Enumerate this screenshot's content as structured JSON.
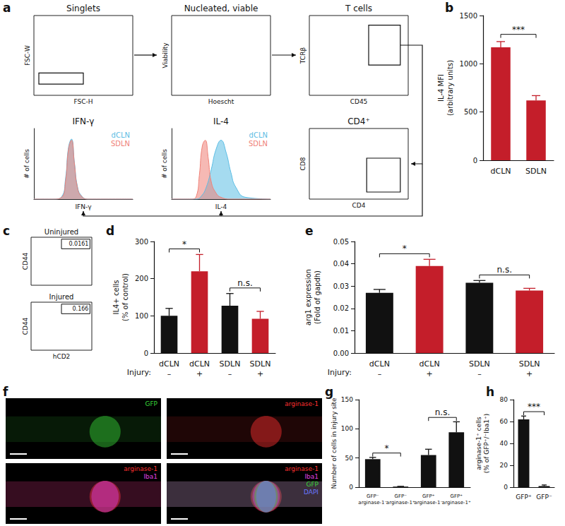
{
  "chart_data": [
    {
      "panel": "a",
      "type": "flow",
      "title": "Singlets",
      "xlabel": "FSC-H",
      "ylabel": "FSC-W"
    },
    {
      "type": "flow",
      "title": "Nucleated, viable",
      "xlabel": "Hoescht",
      "ylabel": "Viability"
    },
    {
      "type": "flow",
      "title": "T cells",
      "xlabel": "CD45",
      "ylabel": "TCRβ"
    },
    {
      "type": "flow",
      "title": "CD4⁺",
      "xlabel": "CD4",
      "ylabel": "CD8"
    },
    {
      "type": "histogram",
      "title": "IFN-γ",
      "xlabel": "IFN-γ",
      "ylabel": "# of cells",
      "xlim": [
        0,
        100
      ],
      "ylim": [
        0,
        120
      ],
      "tick_labels": false,
      "legend": "upper right",
      "series": [
        {
          "name": "dCLN",
          "color": "#5bbde4",
          "x": [
            0,
            20,
            28,
            32,
            35,
            38,
            41,
            44,
            48,
            55,
            100
          ],
          "values": [
            0,
            0,
            4,
            35,
            88,
            102,
            62,
            22,
            6,
            0,
            0
          ]
        },
        {
          "name": "SDLN",
          "color": "#ef8077",
          "x": [
            0,
            20,
            28,
            32,
            35,
            38,
            41,
            44,
            48,
            55,
            100
          ],
          "values": [
            0,
            0,
            3,
            30,
            85,
            100,
            60,
            20,
            5,
            0,
            0
          ]
        }
      ]
    },
    {
      "type": "histogram",
      "title": "IL-4",
      "xlabel": "IL-4",
      "ylabel": "# of cells",
      "xlim": [
        0,
        100
      ],
      "ylim": [
        0,
        120
      ],
      "tick_labels": false,
      "legend": "upper right",
      "series": [
        {
          "name": "dCLN",
          "color": "#5bbde4",
          "x": [
            0,
            25,
            30,
            35,
            40,
            45,
            50,
            55,
            60,
            65,
            75,
            100
          ],
          "values": [
            0,
            0,
            5,
            20,
            50,
            85,
            100,
            80,
            45,
            20,
            3,
            0
          ]
        },
        {
          "name": "SDLN",
          "color": "#ef8077",
          "x": [
            0,
            20,
            25,
            28,
            31,
            34,
            37,
            40,
            45,
            50,
            60,
            100
          ],
          "values": [
            0,
            0,
            5,
            40,
            90,
            100,
            70,
            30,
            10,
            3,
            0,
            0
          ]
        }
      ]
    },
    {
      "panel": "b",
      "type": "bar",
      "categories": [
        "dCLN",
        "SDLN"
      ],
      "values": [
        1170,
        620
      ],
      "errors": [
        60,
        50
      ],
      "color": "#c41e2a",
      "ylim": [
        0,
        1500
      ],
      "yticks": [
        0,
        500,
        1000,
        1500
      ],
      "ylabel": "IL-4 MFI\n(arbitrary units)",
      "grid": false,
      "comparisons": [
        {
          "from": 0,
          "to": 1,
          "label": "***"
        }
      ]
    },
    {
      "panel": "c",
      "type": "flow_gate",
      "xlabel": "hCD2",
      "ylabel": "CD44",
      "plots": [
        {
          "title": "Uninjured",
          "gate_percent": 0.0161
        },
        {
          "title": "Injured",
          "gate_percent": 0.166
        }
      ]
    },
    {
      "panel": "d",
      "type": "bar",
      "categories": [
        "dCLN",
        "dCLN",
        "SDLN",
        "SDLN"
      ],
      "injury_label": "Injury:",
      "injury": [
        "–",
        "+",
        "–",
        "+"
      ],
      "values": [
        100,
        220,
        127,
        92
      ],
      "errors": [
        20,
        45,
        33,
        20
      ],
      "colors": [
        "#111111",
        "#c41e2a",
        "#111111",
        "#c41e2a"
      ],
      "ylim": [
        0,
        300
      ],
      "yticks": [
        0,
        100,
        200,
        300
      ],
      "ylabel": "IL4+ cells\n(% of control)",
      "grid": false,
      "comparisons": [
        {
          "from": 0,
          "to": 1,
          "label": "*"
        },
        {
          "from": 2,
          "to": 3,
          "label": "n.s."
        }
      ]
    },
    {
      "panel": "e",
      "type": "bar",
      "categories": [
        "dCLN",
        "dCLN",
        "SDLN",
        "SDLN"
      ],
      "injury_label": "Injury:",
      "injury": [
        "–",
        "+",
        "–",
        "+"
      ],
      "values": [
        0.027,
        0.039,
        0.0315,
        0.028
      ],
      "errors": [
        0.0015,
        0.003,
        0.001,
        0.001
      ],
      "colors": [
        "#111111",
        "#c41e2a",
        "#111111",
        "#c41e2a"
      ],
      "ylim": [
        0,
        0.05
      ],
      "yticks": [
        {
          "value": 0,
          "label": "0.00"
        },
        {
          "value": 0.01,
          "label": "0.01"
        },
        {
          "value": 0.02,
          "label": "0.02"
        },
        {
          "value": 0.03,
          "label": "0.03"
        },
        {
          "value": 0.04,
          "label": "0.04"
        },
        {
          "value": 0.05,
          "label": "0.05"
        }
      ],
      "ylabel": "arg1 expression\n(Fold of gapdh)",
      "grid": false,
      "comparisons": [
        {
          "from": 0,
          "to": 1,
          "label": "*"
        },
        {
          "from": 2,
          "to": 3,
          "label": "n.s."
        }
      ]
    },
    {
      "panel": "f",
      "type": "image",
      "images": [
        {
          "channels": [
            {
              "label": "GFP",
              "color": "#39d639"
            }
          ]
        },
        {
          "channels": [
            {
              "label": "arginase-1",
              "color": "#ff3030"
            }
          ]
        },
        {
          "channels": [
            {
              "label": "arginase-1",
              "color": "#ff3030"
            },
            {
              "label": "Iba1",
              "color": "#e040e0"
            }
          ]
        },
        {
          "channels": [
            {
              "label": "arginase-1",
              "color": "#ff3030"
            },
            {
              "label": "Iba1",
              "color": "#e040e0"
            },
            {
              "label": "GFP",
              "color": "#39d639"
            },
            {
              "label": "DAPI",
              "color": "#6a78ff"
            }
          ]
        }
      ]
    },
    {
      "panel": "g",
      "type": "bar",
      "categories": [
        "GFP⁻\narginase-1⁻",
        "GFP⁻\narginase-1⁺",
        "GFP⁺\narginase-1⁻",
        "GFP⁺\narginase-1⁺"
      ],
      "values": [
        48,
        1,
        55,
        94
      ],
      "errors": [
        3,
        0.5,
        10,
        18
      ],
      "color": "#111111",
      "ylim": [
        0,
        150
      ],
      "yticks": [
        0,
        50,
        100,
        150
      ],
      "ylabel": "Number of cells in injury site",
      "grid": false,
      "comparisons": [
        {
          "from": 0,
          "to": 1,
          "label": "*"
        },
        {
          "from": 2,
          "to": 3,
          "label": "n.s."
        }
      ]
    },
    {
      "panel": "h",
      "type": "bar",
      "categories": [
        "GFP⁺",
        "GFP⁻"
      ],
      "values": [
        62,
        1
      ],
      "errors": [
        3,
        1
      ],
      "color": "#111111",
      "ylim": [
        0,
        80
      ],
      "yticks": [
        0,
        20,
        40,
        60,
        80
      ],
      "ylabel": "arginase-1⁺ cells\n(% of GFP⁺/⁻Iba1⁺)",
      "grid": false,
      "comparisons": [
        {
          "from": 0,
          "to": 1,
          "label": "***"
        }
      ]
    }
  ]
}
